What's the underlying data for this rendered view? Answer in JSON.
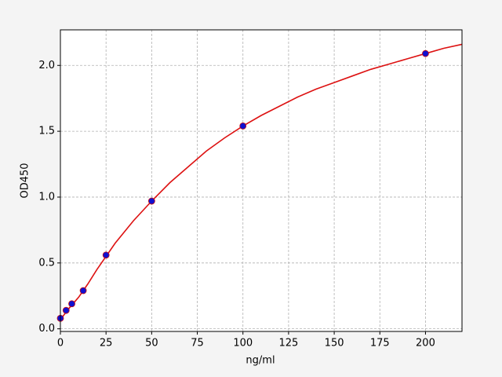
{
  "chart_data": {
    "type": "scatter",
    "xlabel": "ng/ml",
    "ylabel": "OD450",
    "xlim": [
      0,
      220
    ],
    "ylim": [
      -0.02,
      2.27
    ],
    "xticks": [
      0,
      25,
      50,
      75,
      100,
      125,
      150,
      175,
      200
    ],
    "yticks": [
      {
        "value": 0,
        "label": "0.0"
      },
      0.5,
      {
        "value": 1,
        "label": "1.0"
      },
      1.5,
      {
        "value": 2,
        "label": "2.0"
      }
    ],
    "grid": true,
    "series": [
      {
        "kind": "points",
        "color": "#1010d0",
        "edgecolor": "#cc1111",
        "x": [
          0,
          3.125,
          6.25,
          12.5,
          25,
          50,
          100,
          200
        ],
        "values": [
          0.08,
          0.14,
          0.19,
          0.29,
          0.56,
          0.97,
          1.54,
          2.09
        ]
      },
      {
        "kind": "line",
        "color": "#dd1111",
        "x": [
          0,
          5,
          10,
          15,
          20,
          25,
          30,
          40,
          50,
          60,
          70,
          80,
          90,
          100,
          110,
          120,
          130,
          140,
          150,
          160,
          170,
          180,
          190,
          200,
          210,
          220
        ],
        "values": [
          0.07,
          0.16,
          0.24,
          0.34,
          0.45,
          0.55,
          0.65,
          0.82,
          0.97,
          1.11,
          1.23,
          1.35,
          1.45,
          1.54,
          1.62,
          1.69,
          1.76,
          1.82,
          1.87,
          1.92,
          1.97,
          2.01,
          2.05,
          2.09,
          2.13,
          2.16
        ]
      }
    ]
  }
}
